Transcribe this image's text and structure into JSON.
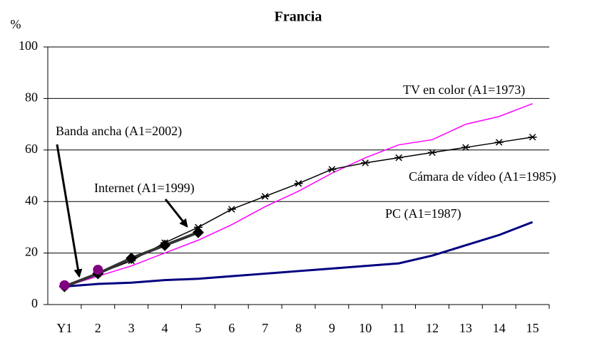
{
  "chart_data": {
    "type": "line",
    "title": "Francia",
    "y_label": "%",
    "categories": [
      "Y1",
      "2",
      "3",
      "4",
      "5",
      "6",
      "7",
      "8",
      "9",
      "10",
      "11",
      "12",
      "13",
      "14",
      "15"
    ],
    "series": [
      {
        "name": "TV en color (A1=1973)",
        "color": "#ff00ff",
        "marker": "none",
        "values": [
          7,
          11,
          15,
          20,
          25,
          31,
          38,
          44,
          51,
          57,
          62,
          64,
          70,
          73,
          78
        ]
      },
      {
        "name": "Cámara de vídeo (A1=1985)",
        "color": "#000000",
        "marker": "asterisk",
        "values": [
          7,
          12,
          17,
          24,
          30,
          37,
          42,
          47,
          52.5,
          55,
          57,
          59,
          61,
          63,
          65
        ]
      },
      {
        "name": "PC (A1=1987)",
        "color": "#000080",
        "marker": "none",
        "values": [
          7,
          8,
          8.5,
          9.5,
          10,
          11,
          12,
          13,
          14,
          15,
          16,
          19,
          23,
          27,
          32
        ]
      },
      {
        "name": "Internet (A1=1999)",
        "color": "#333333",
        "marker": "diamond",
        "values": [
          7,
          12,
          18,
          23,
          28,
          null,
          null,
          null,
          null,
          null,
          null,
          null,
          null,
          null,
          null
        ]
      },
      {
        "name": "Banda ancha (A1=2002)",
        "color": "#800080",
        "marker": "circle",
        "values": [
          7.5,
          13.5,
          null,
          null,
          null,
          null,
          null,
          null,
          null,
          null,
          null,
          null,
          null,
          null,
          null
        ]
      }
    ],
    "ylim": [
      0,
      100
    ],
    "yticks": [
      0,
      20,
      40,
      60,
      80,
      100
    ],
    "grid": true
  }
}
